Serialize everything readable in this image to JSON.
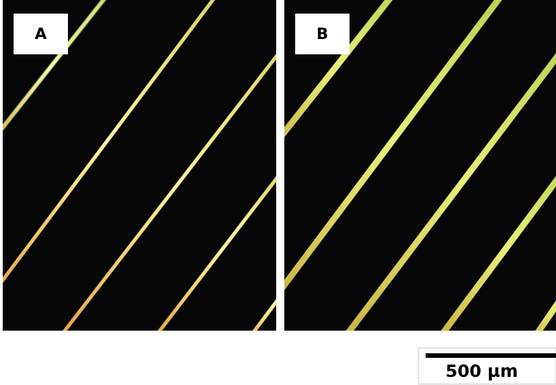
{
  "panels": [
    {
      "label": "A"
    },
    {
      "label": "B"
    }
  ],
  "scale_bar": {
    "label": "500 µm"
  }
}
